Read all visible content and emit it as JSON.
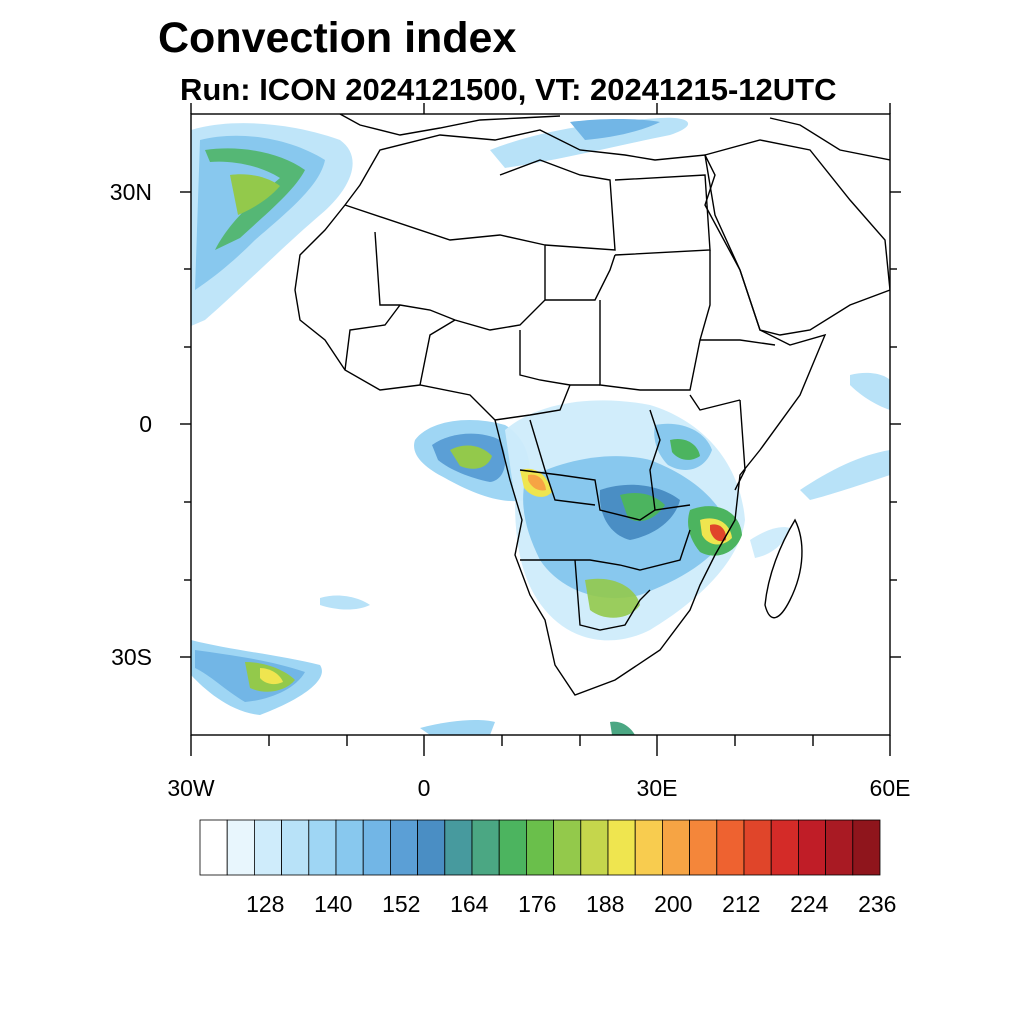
{
  "header": {
    "title": "Convection index",
    "subtitle": "Run: ICON 2024121500,  VT: 20241215-12UTC"
  },
  "map": {
    "lat_labels": [
      "30N",
      "0",
      "30S"
    ],
    "lon_labels": [
      "30W",
      "0",
      "30E",
      "60E"
    ]
  },
  "colorbar": {
    "tick_labels": [
      "128",
      "140",
      "152",
      "164",
      "176",
      "188",
      "200",
      "212",
      "224",
      "236"
    ],
    "colors": [
      "#ffffff",
      "#e8f6fd",
      "#cfecfb",
      "#b8e2f8",
      "#9fd6f4",
      "#88c8ee",
      "#72b6e6",
      "#5b9fd6",
      "#4a8ec4",
      "#479a9e",
      "#4ba783",
      "#4cb45f",
      "#6abf4b",
      "#93c94b",
      "#c5d64c",
      "#efe54f",
      "#f8cc4f",
      "#f6a444",
      "#f4863a",
      "#ee6230",
      "#e0452a",
      "#d42b28",
      "#c01d27",
      "#a91a23",
      "#8f151c"
    ]
  }
}
